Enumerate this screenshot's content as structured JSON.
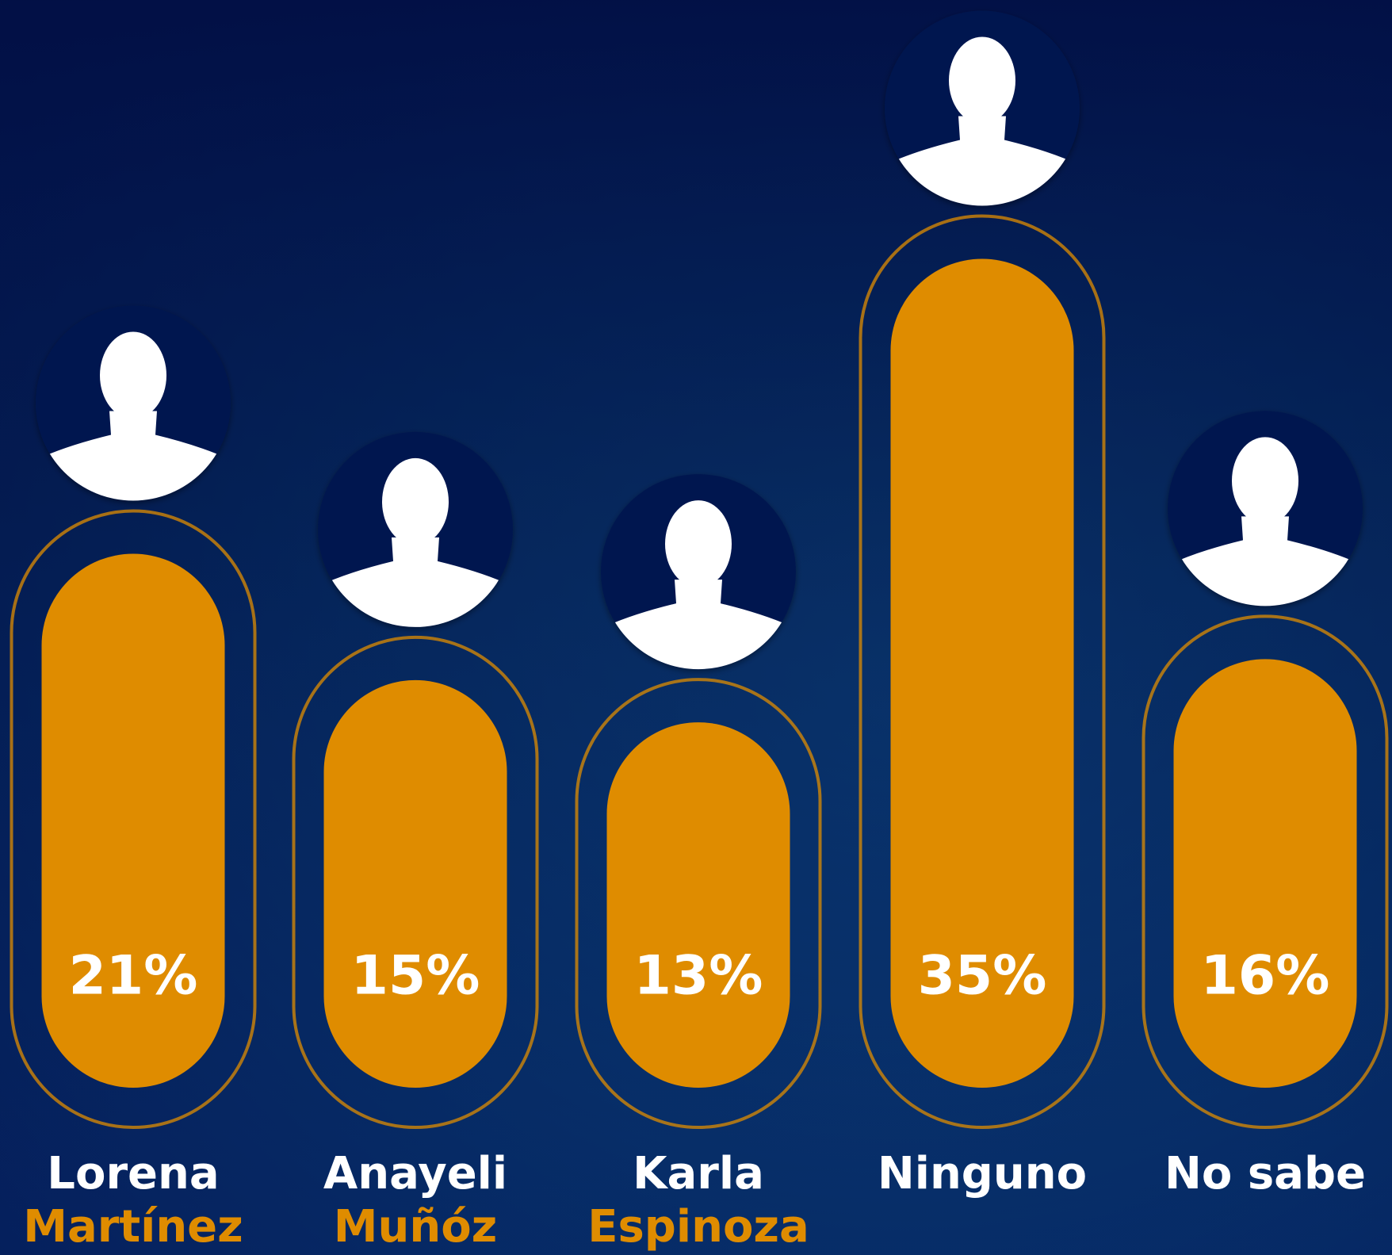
{
  "chart_data": {
    "type": "bar",
    "categories": [
      [
        "Lorena",
        "Martínez"
      ],
      [
        "Anayeli",
        "Muñóz"
      ],
      [
        "Karla",
        "Espinoza"
      ],
      [
        "Ninguno"
      ],
      [
        "No sabe"
      ]
    ],
    "values": [
      21,
      15,
      13,
      35,
      16
    ],
    "value_labels": [
      "21%",
      "15%",
      "13%",
      "35%",
      "16%"
    ],
    "color": "#df8c00"
  }
}
